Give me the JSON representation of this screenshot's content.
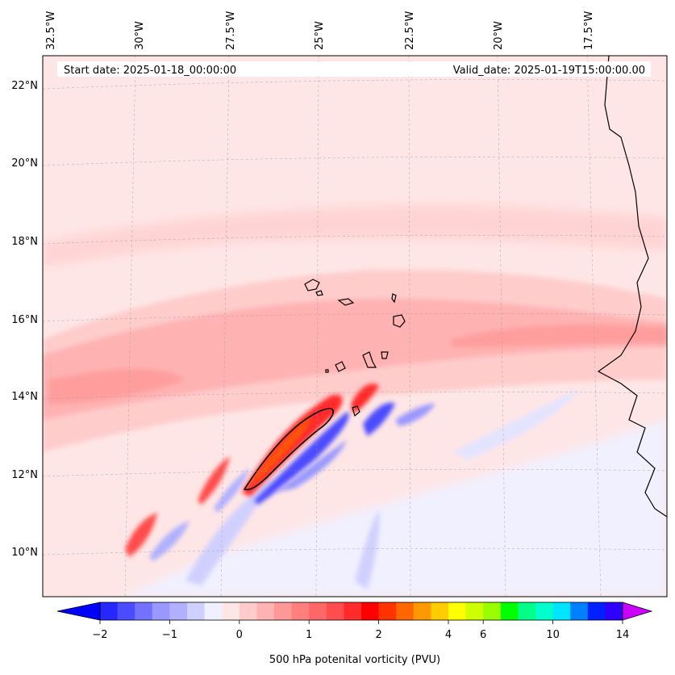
{
  "map": {
    "start_label": "Start date: 2025-01-18_00:00:00",
    "valid_label": "Valid_date: 2025-01-19T15:00:00.00",
    "lon_labels": [
      "32.5°W",
      "30°W",
      "27.5°W",
      "25°W",
      "22.5°W",
      "20°W",
      "17.5°W"
    ],
    "lat_labels": [
      "22°N",
      "20°N",
      "18°N",
      "16°N",
      "14°N",
      "12°N",
      "10°N"
    ],
    "lon_range": [
      -32.5,
      -15.3
    ],
    "lat_range": [
      8.9,
      22.8
    ]
  },
  "colorbar": {
    "label": "500 hPa potenital vorticity (PVU)",
    "tick_labels": [
      "−2",
      "−1",
      "0",
      "1",
      "2",
      "4",
      "6",
      "10",
      "14"
    ],
    "tick_levels": [
      -2,
      -1,
      0,
      1,
      2,
      4,
      6,
      10,
      14
    ],
    "levels": [
      -2,
      -1.75,
      -1.5,
      -1.25,
      -1,
      -0.75,
      -0.5,
      -0.25,
      0,
      0.25,
      0.5,
      0.75,
      1,
      1.25,
      1.5,
      1.75,
      2,
      2.5,
      3,
      3.5,
      4,
      5,
      6,
      7,
      8,
      9,
      10,
      11,
      12,
      13,
      14
    ],
    "colors": [
      "#0000ff",
      "#2626ff",
      "#4c4cff",
      "#7272ff",
      "#9898ff",
      "#b0b0ff",
      "#d0d0ff",
      "#f0f0ff",
      "#ffe6e6",
      "#ffcccc",
      "#ffb2b2",
      "#ff9999",
      "#ff7f7f",
      "#ff6666",
      "#ff4c4c",
      "#ff2b2b",
      "#ff0000",
      "#ff3300",
      "#ff6600",
      "#ff9900",
      "#ffcc00",
      "#ffff00",
      "#ccff00",
      "#99ff00",
      "#00ff00",
      "#00ff88",
      "#00ffcc",
      "#00e5ff",
      "#0080ff",
      "#0020ff",
      "#3000ff",
      "#9900ff"
    ],
    "under_color": "#0000ff",
    "over_color": "#cc00ff"
  }
}
